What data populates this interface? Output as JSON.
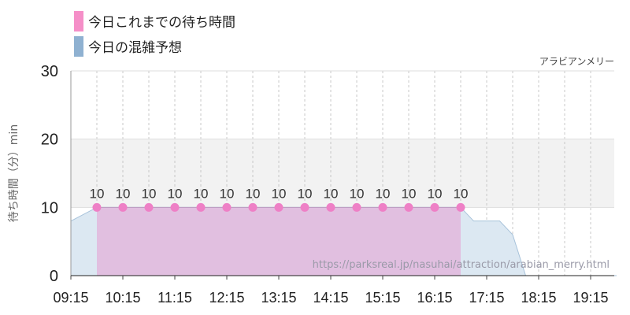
{
  "chart_data": {
    "type": "area",
    "subtitle": "アラビアンメリー",
    "ylabel": "待ち時間（分）min",
    "ylim": [
      0,
      30
    ],
    "y_ticks": [
      "0",
      "10",
      "20",
      "30"
    ],
    "x_tick_labels": [
      "09:15",
      "10:15",
      "11:15",
      "12:15",
      "13:15",
      "14:15",
      "15:15",
      "16:15",
      "17:15",
      "18:15",
      "19:15"
    ],
    "legend": [
      {
        "label": "今日これまでの待ち時間",
        "color": "#f58fc8"
      },
      {
        "label": "今日の混雑予想",
        "color": "#8fb1d1"
      }
    ],
    "series": [
      {
        "name": "今日の混雑予想",
        "color": "#dce8f2",
        "stroke": "#a7c2da",
        "x": [
          "09:15",
          "09:45",
          "10:00",
          "10:15",
          "10:30",
          "11:00",
          "11:30",
          "12:00",
          "12:30",
          "13:00",
          "13:30",
          "14:00",
          "14:30",
          "15:00",
          "15:30",
          "16:00",
          "16:30",
          "16:45",
          "17:00",
          "17:15",
          "17:30",
          "17:45",
          "18:00",
          "18:15",
          "18:30",
          "19:00",
          "19:30",
          "19:45"
        ],
        "values": [
          8,
          10,
          10,
          10,
          10,
          10,
          10,
          10,
          10,
          10,
          10,
          10,
          10,
          10,
          10,
          10,
          10,
          10,
          8,
          8,
          8,
          6,
          0,
          0,
          0,
          0,
          0,
          0
        ]
      },
      {
        "name": "今日これまでの待ち時間",
        "color": "#e1bfe0",
        "point_color": "#ee80c6",
        "x": [
          "09:45",
          "10:15",
          "10:45",
          "11:15",
          "11:45",
          "12:15",
          "12:45",
          "13:15",
          "13:45",
          "14:15",
          "14:45",
          "15:15",
          "15:45",
          "16:15",
          "16:45"
        ],
        "values": [
          10,
          10,
          10,
          10,
          10,
          10,
          10,
          10,
          10,
          10,
          10,
          10,
          10,
          10,
          10
        ]
      }
    ],
    "bands": [
      {
        "from": 10,
        "to": 20,
        "color": "#f2f2f2"
      }
    ],
    "watermark": "https://parksreal.jp/nasuhai/attraction/arabian_merry.html"
  }
}
